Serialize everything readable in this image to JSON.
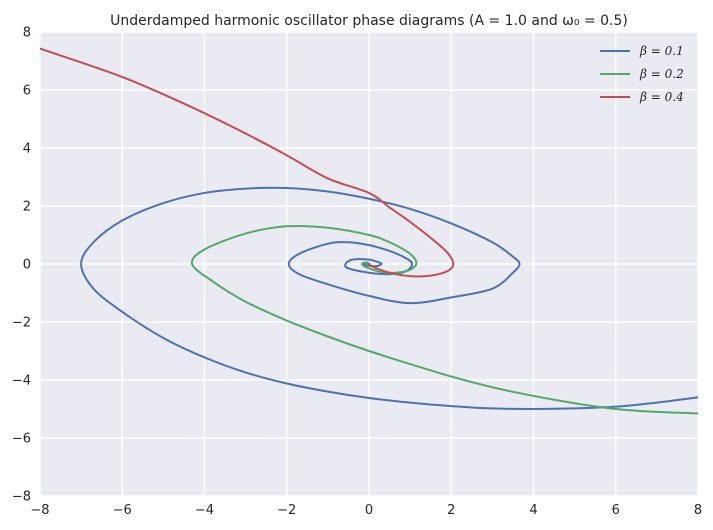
{
  "chart_data": {
    "type": "line",
    "title": "Underdamped harmonic oscillator phase diagrams (A = 1.0 and ω₀ = 0.5)",
    "xlabel": "",
    "ylabel": "",
    "xlim": [
      -8,
      8
    ],
    "ylim": [
      -8,
      8
    ],
    "x_ticks": [
      "−8",
      "−6",
      "−4",
      "−2",
      "0",
      "2",
      "4",
      "6",
      "8"
    ],
    "y_ticks": [
      "8",
      "6",
      "4",
      "2",
      "0",
      "−2",
      "−4",
      "−6",
      "−8"
    ],
    "grid": true,
    "legend_position": "top-right",
    "colors": {
      "background": "#eaeaf2",
      "grid": "#ffffff"
    },
    "series": [
      {
        "name": "β = 0.1",
        "color": "#4c72b0",
        "points": [
          [
            8.0,
            -4.6
          ],
          [
            7.0,
            -4.78
          ],
          [
            6.0,
            -4.92
          ],
          [
            5.0,
            -4.98
          ],
          [
            4.0,
            -5.0
          ],
          [
            3.0,
            -4.98
          ],
          [
            2.0,
            -4.9
          ],
          [
            1.0,
            -4.78
          ],
          [
            0.0,
            -4.62
          ],
          [
            -1.0,
            -4.4
          ],
          [
            -2.0,
            -4.12
          ],
          [
            -3.0,
            -3.74
          ],
          [
            -4.0,
            -3.22
          ],
          [
            -5.0,
            -2.55
          ],
          [
            -6.0,
            -1.65
          ],
          [
            -6.7,
            -0.85
          ],
          [
            -7.0,
            0.0
          ],
          [
            -6.7,
            0.75
          ],
          [
            -6.0,
            1.5
          ],
          [
            -5.0,
            2.1
          ],
          [
            -4.0,
            2.45
          ],
          [
            -3.0,
            2.6
          ],
          [
            -2.0,
            2.62
          ],
          [
            -1.0,
            2.5
          ],
          [
            0.0,
            2.25
          ],
          [
            1.0,
            1.9
          ],
          [
            2.0,
            1.4
          ],
          [
            3.0,
            0.75
          ],
          [
            3.5,
            0.25
          ],
          [
            3.66,
            0.0
          ],
          [
            3.5,
            -0.3
          ],
          [
            3.0,
            -0.85
          ],
          [
            2.0,
            -1.15
          ],
          [
            1.0,
            -1.35
          ],
          [
            0.0,
            -1.1
          ],
          [
            -1.0,
            -0.7
          ],
          [
            -1.7,
            -0.35
          ],
          [
            -1.95,
            0.0
          ],
          [
            -1.7,
            0.35
          ],
          [
            -1.0,
            0.7
          ],
          [
            -0.5,
            0.75
          ],
          [
            0.0,
            0.65
          ],
          [
            0.5,
            0.45
          ],
          [
            0.9,
            0.2
          ],
          [
            1.05,
            0.0
          ],
          [
            0.9,
            -0.25
          ],
          [
            0.5,
            -0.35
          ],
          [
            0.0,
            -0.3
          ],
          [
            -0.5,
            -0.15
          ],
          [
            -0.57,
            0.0
          ],
          [
            -0.4,
            0.15
          ],
          [
            0.0,
            0.15
          ],
          [
            0.25,
            0.05
          ],
          [
            0.3,
            0.0
          ],
          [
            0.2,
            -0.07
          ],
          [
            0.0,
            -0.06
          ],
          [
            -0.13,
            0.0
          ],
          [
            -0.05,
            0.04
          ],
          [
            0.0,
            0.0
          ]
        ]
      },
      {
        "name": "β = 0.2",
        "color": "#55a868",
        "points": [
          [
            8.0,
            -5.15
          ],
          [
            7.0,
            -5.1
          ],
          [
            6.0,
            -5.0
          ],
          [
            5.0,
            -4.8
          ],
          [
            4.0,
            -4.55
          ],
          [
            3.0,
            -4.25
          ],
          [
            2.0,
            -3.88
          ],
          [
            1.0,
            -3.45
          ],
          [
            0.0,
            -3.0
          ],
          [
            -1.0,
            -2.5
          ],
          [
            -2.0,
            -1.95
          ],
          [
            -3.0,
            -1.3
          ],
          [
            -3.8,
            -0.6
          ],
          [
            -4.3,
            0.0
          ],
          [
            -4.0,
            0.5
          ],
          [
            -3.0,
            1.05
          ],
          [
            -2.0,
            1.3
          ],
          [
            -1.0,
            1.25
          ],
          [
            0.0,
            1.0
          ],
          [
            0.5,
            0.75
          ],
          [
            1.0,
            0.35
          ],
          [
            1.15,
            0.0
          ],
          [
            0.9,
            -0.25
          ],
          [
            0.4,
            -0.3
          ],
          [
            0.0,
            -0.15
          ],
          [
            -0.17,
            0.0
          ],
          [
            -0.05,
            0.05
          ],
          [
            0.0,
            0.0
          ]
        ]
      },
      {
        "name": "β = 0.4",
        "color": "#c44e52",
        "points": [
          [
            -8.0,
            7.43
          ],
          [
            -7.0,
            6.95
          ],
          [
            -6.0,
            6.45
          ],
          [
            -5.0,
            5.85
          ],
          [
            -4.0,
            5.2
          ],
          [
            -3.0,
            4.5
          ],
          [
            -2.0,
            3.75
          ],
          [
            -1.0,
            2.95
          ],
          [
            0.0,
            2.45
          ],
          [
            0.5,
            1.95
          ],
          [
            1.0,
            1.45
          ],
          [
            1.5,
            0.9
          ],
          [
            1.9,
            0.4
          ],
          [
            2.05,
            0.0
          ],
          [
            1.9,
            -0.25
          ],
          [
            1.5,
            -0.4
          ],
          [
            1.0,
            -0.42
          ],
          [
            0.5,
            -0.3
          ],
          [
            0.1,
            -0.1
          ],
          [
            0.0,
            0.0
          ]
        ]
      }
    ]
  }
}
